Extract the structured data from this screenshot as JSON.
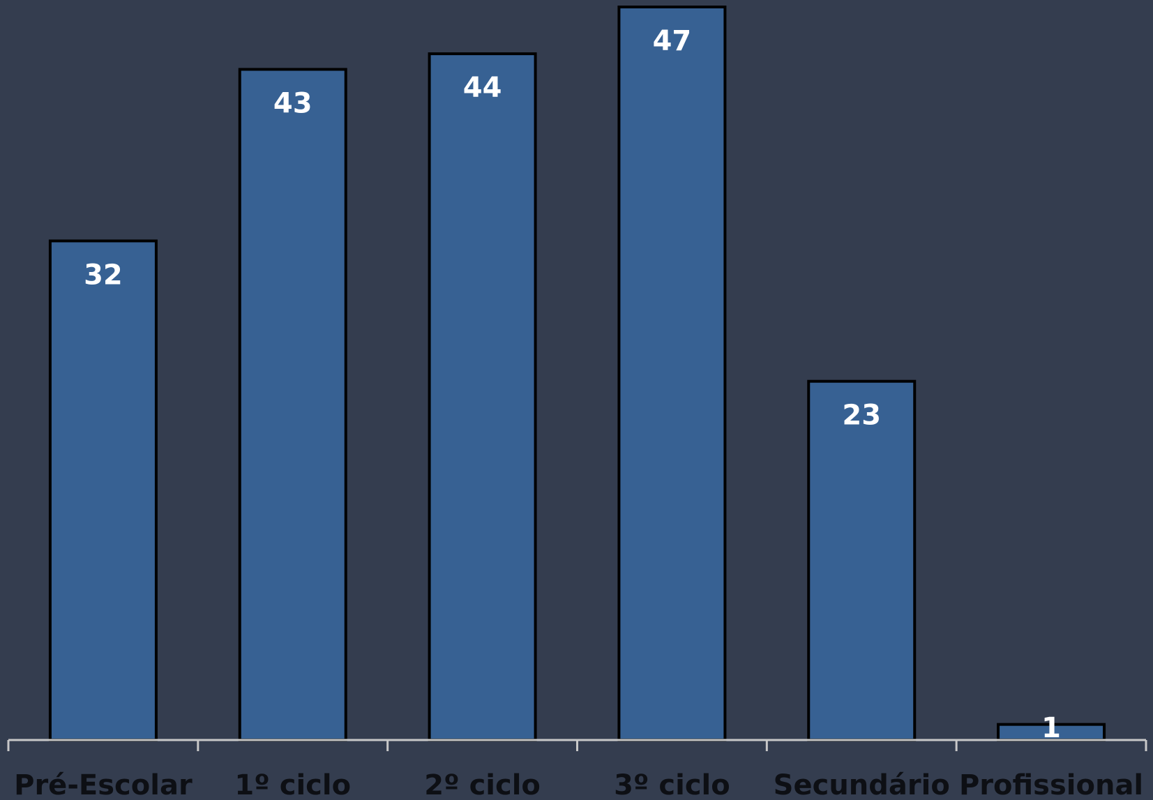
{
  "colors": {
    "background": "#343d4f",
    "bar_fill": "#376193",
    "bar_stroke": "#000000",
    "axis": "#c8c8c8",
    "value_label": "#ffffff",
    "tick_label": "#0d0f14"
  },
  "chart_data": {
    "type": "bar",
    "title": "",
    "xlabel": "",
    "ylabel": "",
    "categories": [
      "Pré-Escolar",
      "1º ciclo",
      "2º ciclo",
      "3º ciclo",
      "Secundário",
      "Profissional"
    ],
    "values": [
      32,
      43,
      44,
      47,
      23,
      1
    ],
    "ylim": [
      0,
      47
    ],
    "grid": false,
    "legend": "none",
    "data_labels": true
  }
}
